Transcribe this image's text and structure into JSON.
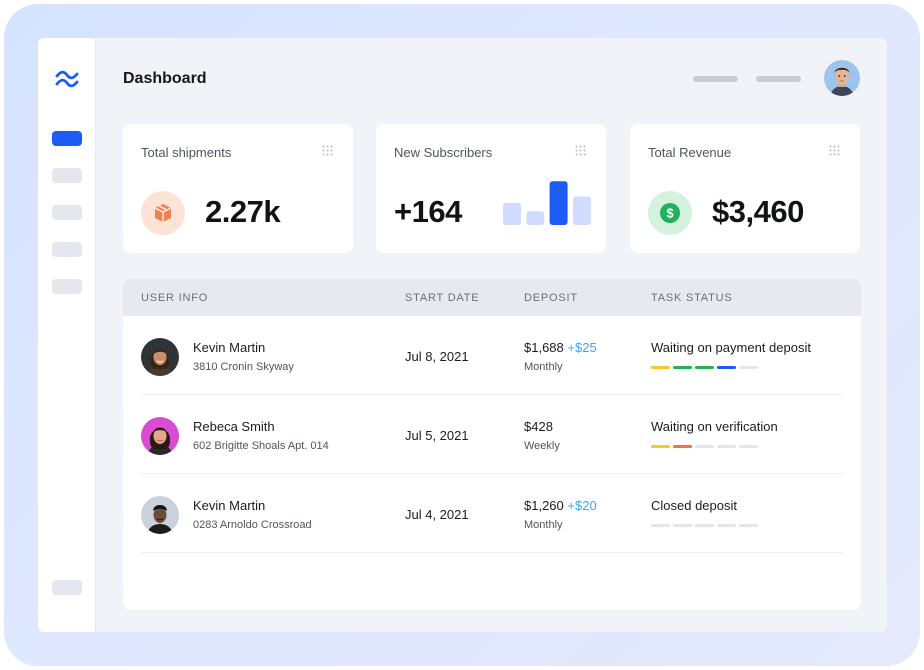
{
  "app": {
    "title": "Dashboard"
  },
  "colors": {
    "accent": "#1d5bf5",
    "shipment_icon_bg": "#fde3d6",
    "shipment_icon": "#f2814f",
    "revenue_icon_bg": "#d5f2df",
    "revenue_icon": "#1fb25a",
    "positive": "#3aa6f0",
    "status_yellow": "#fbc626",
    "status_green": "#22b355",
    "status_blue": "#1d5bf5",
    "status_orange": "#f97433",
    "status_empty": "#e4e6eb"
  },
  "sidebar": {
    "logo_icon": "waves-logo-icon",
    "active_index": 0
  },
  "cards": [
    {
      "label": "Total shipments",
      "value": "2.27k",
      "icon": "package-icon"
    },
    {
      "label": "New Subscribers",
      "value": "+164",
      "icon": "bar-chart-icon",
      "mini_bars": [
        0.48,
        0.3,
        0.95,
        0.62
      ],
      "highlight_bar": 2
    },
    {
      "label": "Total Revenue",
      "value": "$3,460",
      "icon": "dollar-icon"
    }
  ],
  "table": {
    "columns": [
      "USER INFO",
      "START DATE",
      "DEPOSIT",
      "TASK STATUS"
    ],
    "rows": [
      {
        "name": "Kevin Martin",
        "address": "3810 Cronin Skyway",
        "start_date": "Jul 8, 2021",
        "deposit": "$1,688",
        "deposit_extra": "+$25",
        "frequency": "Monthly",
        "status": "Waiting on payment deposit",
        "progress": [
          "yellow",
          "green",
          "green",
          "blue",
          "empty"
        ]
      },
      {
        "name": "Rebeca Smith",
        "address": "602 Brigitte Shoals Apt. 014",
        "start_date": "Jul 5, 2021",
        "deposit": "$428",
        "deposit_extra": "",
        "frequency": "Weekly",
        "status": "Waiting on verification",
        "progress": [
          "yellow",
          "orange",
          "empty",
          "empty",
          "empty"
        ]
      },
      {
        "name": "Kevin Martin",
        "address": "0283 Arnoldo Crossroad",
        "start_date": "Jul 4, 2021",
        "deposit": "$1,260",
        "deposit_extra": "+$20",
        "frequency": "Monthly",
        "status": "Closed deposit",
        "progress": [
          "empty",
          "empty",
          "empty",
          "empty",
          "empty"
        ]
      }
    ]
  }
}
